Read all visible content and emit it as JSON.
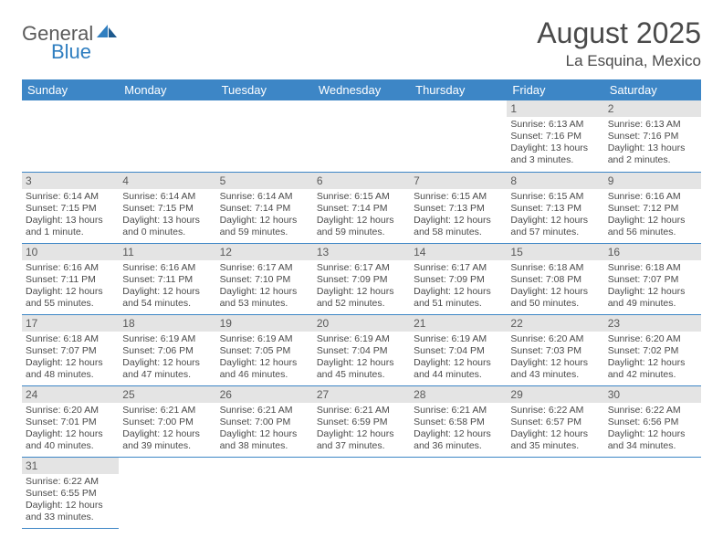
{
  "logo": {
    "text1": "General",
    "text2": "Blue",
    "text_color": "#5a5a5a",
    "accent_color": "#2f7ec0"
  },
  "title": "August 2025",
  "location": "La Esquina, Mexico",
  "header_bg": "#3d86c6",
  "header_fg": "#ffffff",
  "daynum_bg": "#e4e4e4",
  "row_border": "#3d86c6",
  "weekdays": [
    "Sunday",
    "Monday",
    "Tuesday",
    "Wednesday",
    "Thursday",
    "Friday",
    "Saturday"
  ],
  "weeks": [
    [
      null,
      null,
      null,
      null,
      null,
      {
        "n": "1",
        "sr": "6:13 AM",
        "ss": "7:16 PM",
        "dl": "13 hours and 3 minutes."
      },
      {
        "n": "2",
        "sr": "6:13 AM",
        "ss": "7:16 PM",
        "dl": "13 hours and 2 minutes."
      }
    ],
    [
      {
        "n": "3",
        "sr": "6:14 AM",
        "ss": "7:15 PM",
        "dl": "13 hours and 1 minute."
      },
      {
        "n": "4",
        "sr": "6:14 AM",
        "ss": "7:15 PM",
        "dl": "13 hours and 0 minutes."
      },
      {
        "n": "5",
        "sr": "6:14 AM",
        "ss": "7:14 PM",
        "dl": "12 hours and 59 minutes."
      },
      {
        "n": "6",
        "sr": "6:15 AM",
        "ss": "7:14 PM",
        "dl": "12 hours and 59 minutes."
      },
      {
        "n": "7",
        "sr": "6:15 AM",
        "ss": "7:13 PM",
        "dl": "12 hours and 58 minutes."
      },
      {
        "n": "8",
        "sr": "6:15 AM",
        "ss": "7:13 PM",
        "dl": "12 hours and 57 minutes."
      },
      {
        "n": "9",
        "sr": "6:16 AM",
        "ss": "7:12 PM",
        "dl": "12 hours and 56 minutes."
      }
    ],
    [
      {
        "n": "10",
        "sr": "6:16 AM",
        "ss": "7:11 PM",
        "dl": "12 hours and 55 minutes."
      },
      {
        "n": "11",
        "sr": "6:16 AM",
        "ss": "7:11 PM",
        "dl": "12 hours and 54 minutes."
      },
      {
        "n": "12",
        "sr": "6:17 AM",
        "ss": "7:10 PM",
        "dl": "12 hours and 53 minutes."
      },
      {
        "n": "13",
        "sr": "6:17 AM",
        "ss": "7:09 PM",
        "dl": "12 hours and 52 minutes."
      },
      {
        "n": "14",
        "sr": "6:17 AM",
        "ss": "7:09 PM",
        "dl": "12 hours and 51 minutes."
      },
      {
        "n": "15",
        "sr": "6:18 AM",
        "ss": "7:08 PM",
        "dl": "12 hours and 50 minutes."
      },
      {
        "n": "16",
        "sr": "6:18 AM",
        "ss": "7:07 PM",
        "dl": "12 hours and 49 minutes."
      }
    ],
    [
      {
        "n": "17",
        "sr": "6:18 AM",
        "ss": "7:07 PM",
        "dl": "12 hours and 48 minutes."
      },
      {
        "n": "18",
        "sr": "6:19 AM",
        "ss": "7:06 PM",
        "dl": "12 hours and 47 minutes."
      },
      {
        "n": "19",
        "sr": "6:19 AM",
        "ss": "7:05 PM",
        "dl": "12 hours and 46 minutes."
      },
      {
        "n": "20",
        "sr": "6:19 AM",
        "ss": "7:04 PM",
        "dl": "12 hours and 45 minutes."
      },
      {
        "n": "21",
        "sr": "6:19 AM",
        "ss": "7:04 PM",
        "dl": "12 hours and 44 minutes."
      },
      {
        "n": "22",
        "sr": "6:20 AM",
        "ss": "7:03 PM",
        "dl": "12 hours and 43 minutes."
      },
      {
        "n": "23",
        "sr": "6:20 AM",
        "ss": "7:02 PM",
        "dl": "12 hours and 42 minutes."
      }
    ],
    [
      {
        "n": "24",
        "sr": "6:20 AM",
        "ss": "7:01 PM",
        "dl": "12 hours and 40 minutes."
      },
      {
        "n": "25",
        "sr": "6:21 AM",
        "ss": "7:00 PM",
        "dl": "12 hours and 39 minutes."
      },
      {
        "n": "26",
        "sr": "6:21 AM",
        "ss": "7:00 PM",
        "dl": "12 hours and 38 minutes."
      },
      {
        "n": "27",
        "sr": "6:21 AM",
        "ss": "6:59 PM",
        "dl": "12 hours and 37 minutes."
      },
      {
        "n": "28",
        "sr": "6:21 AM",
        "ss": "6:58 PM",
        "dl": "12 hours and 36 minutes."
      },
      {
        "n": "29",
        "sr": "6:22 AM",
        "ss": "6:57 PM",
        "dl": "12 hours and 35 minutes."
      },
      {
        "n": "30",
        "sr": "6:22 AM",
        "ss": "6:56 PM",
        "dl": "12 hours and 34 minutes."
      }
    ],
    [
      {
        "n": "31",
        "sr": "6:22 AM",
        "ss": "6:55 PM",
        "dl": "12 hours and 33 minutes."
      },
      null,
      null,
      null,
      null,
      null,
      null
    ]
  ],
  "labels": {
    "sunrise": "Sunrise: ",
    "sunset": "Sunset: ",
    "daylight": "Daylight: "
  }
}
